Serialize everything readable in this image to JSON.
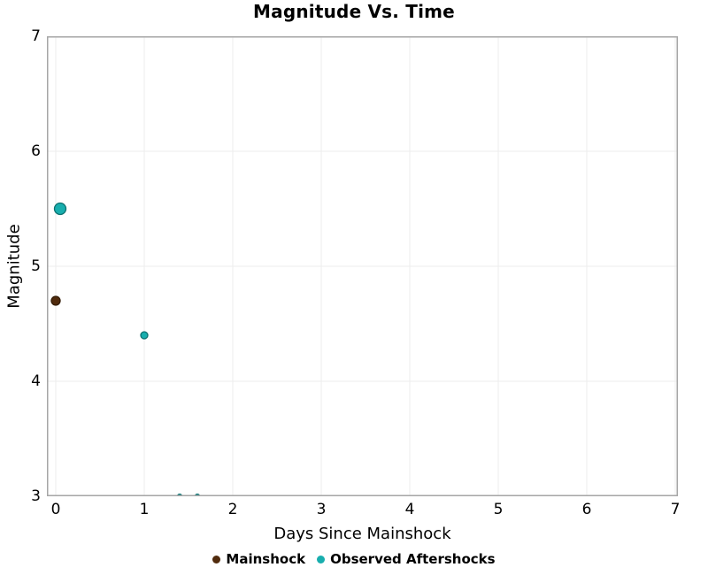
{
  "title": "Magnitude Vs. Time",
  "axes": {
    "x": {
      "label": "Days Since Mainshock",
      "tick_values": [
        0,
        1,
        2,
        3,
        4,
        5,
        6,
        7
      ]
    },
    "y": {
      "label": "Magnitude",
      "tick_values": [
        3,
        4,
        5,
        6,
        7
      ]
    }
  },
  "legend": {
    "items": [
      {
        "label": "Mainshock",
        "color": "#512b0d"
      },
      {
        "label": "Observed Aftershocks",
        "color": "#18aeae"
      }
    ]
  },
  "colors": {
    "grid": "#ececec",
    "spine": "#a6a6a6",
    "text": "#000000",
    "background": "#ffffff",
    "mainshock": "#512b0d",
    "mainshock_stroke": "#331c06",
    "aftershock": "#18aeae",
    "aftershock_stroke": "#0d7170"
  },
  "chart_data": {
    "type": "scatter",
    "title": "Magnitude Vs. Time",
    "xlabel": "Days Since Mainshock",
    "ylabel": "Magnitude",
    "xlim": [
      -0.1,
      7.03
    ],
    "ylim": [
      3,
      7
    ],
    "grid": true,
    "legend_position": "bottom-center",
    "series": [
      {
        "name": "Mainshock",
        "color": "#512b0d",
        "stroke": "#331c06",
        "points": [
          {
            "x": 0,
            "y": 4.7,
            "r": 5
          }
        ]
      },
      {
        "name": "Observed Aftershocks",
        "color": "#18aeae",
        "stroke": "#0d7170",
        "points": [
          {
            "x": 0.05,
            "y": 5.5,
            "r": 6.5
          },
          {
            "x": 1.0,
            "y": 4.4,
            "r": 4
          },
          {
            "x": 1.4,
            "y": 3.0,
            "r": 2.5
          },
          {
            "x": 1.6,
            "y": 3.0,
            "r": 2.5
          }
        ]
      }
    ]
  }
}
